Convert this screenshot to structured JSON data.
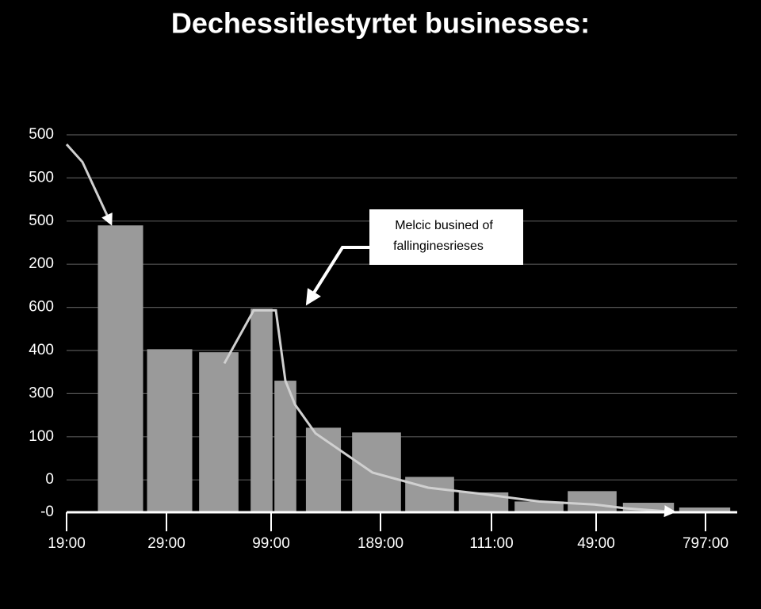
{
  "chart_data": {
    "type": "bar",
    "title": "Dechessitlestyrtet businesses:",
    "annotation": [
      "Melcic busined of",
      "fallinginesrieses"
    ],
    "xlim": [
      0,
      846
    ],
    "ylim": [
      -75,
      800
    ],
    "xticks": [
      {
        "value": 0,
        "label": "19:00"
      },
      {
        "value": 126,
        "label": "29:00"
      },
      {
        "value": 258,
        "label": "99:00"
      },
      {
        "value": 396,
        "label": "189:00"
      },
      {
        "value": 536,
        "label": "111:00"
      },
      {
        "value": 668,
        "label": "49:00"
      },
      {
        "value": 806,
        "label": "797:00"
      }
    ],
    "yticks": [
      {
        "value": -75,
        "label": "-0"
      },
      0,
      100,
      {
        "value": 200,
        "label": "300"
      },
      {
        "value": 300,
        "label": "400"
      },
      {
        "value": 400,
        "label": "600"
      },
      {
        "value": 500,
        "label": "200"
      },
      {
        "value": 600,
        "label": "500"
      },
      {
        "value": 700,
        "label": "500"
      },
      {
        "value": 800,
        "label": "500"
      }
    ],
    "grid": true,
    "bars": {
      "color": "#9a9a9a",
      "x": [
        68,
        130,
        192,
        246,
        276,
        324,
        391,
        458,
        526,
        596,
        663,
        734,
        805
      ],
      "values": [
        590,
        303,
        296,
        397,
        230,
        121,
        110,
        7,
        -29,
        -50,
        -26,
        -53,
        -64
      ]
    },
    "line": {
      "color": "#d0d0d0",
      "x": [
        0,
        20,
        56,
        null,
        199,
        236,
        264,
        276,
        288,
        314,
        386,
        456,
        526,
        596,
        666,
        706,
        766
      ],
      "values": [
        778,
        737,
        594,
        null,
        270,
        393,
        393,
        230,
        175,
        108,
        17,
        -18,
        -33,
        -50,
        -57,
        -66,
        -74
      ]
    }
  }
}
